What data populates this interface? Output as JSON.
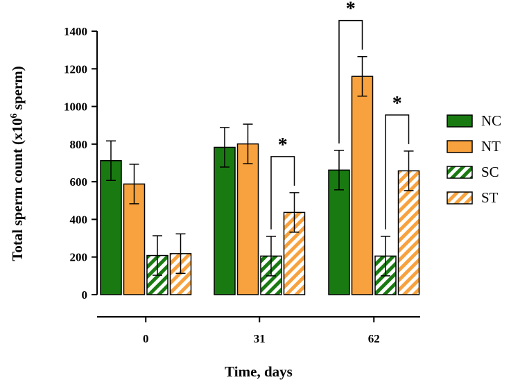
{
  "chart_data": {
    "type": "bar",
    "title": "",
    "xlabel": "Time, days",
    "ylabel_main": "Total sperm count (x10",
    "ylabel_sup": "6",
    "ylabel_end": " sperm)",
    "ylim": [
      0,
      1400
    ],
    "yticks": [
      0,
      200,
      400,
      600,
      800,
      1000,
      1200,
      1400
    ],
    "categories": [
      "0",
      "31",
      "62"
    ],
    "legend_position": "right",
    "series": [
      {
        "name": "NC",
        "color": "#1a7a12",
        "pattern": "solid",
        "values": [
          712,
          783,
          662
        ],
        "errors": [
          105,
          105,
          105
        ]
      },
      {
        "name": "NT",
        "color": "#f7a23e",
        "pattern": "solid",
        "values": [
          588,
          801,
          1160
        ],
        "errors": [
          105,
          105,
          105
        ]
      },
      {
        "name": "SC",
        "color": "#1a7a12",
        "pattern": "striped",
        "values": [
          208,
          205,
          205
        ],
        "errors": [
          105,
          105,
          105
        ]
      },
      {
        "name": "ST",
        "color": "#f7a23e",
        "pattern": "striped",
        "values": [
          218,
          437,
          658
        ],
        "errors": [
          105,
          105,
          105
        ]
      }
    ],
    "significance": [
      {
        "category": 1,
        "from": 2,
        "to": 3,
        "label": "*"
      },
      {
        "category": 2,
        "from": 0,
        "to": 1,
        "label": "*"
      },
      {
        "category": 2,
        "from": 2,
        "to": 3,
        "label": "*"
      }
    ]
  }
}
